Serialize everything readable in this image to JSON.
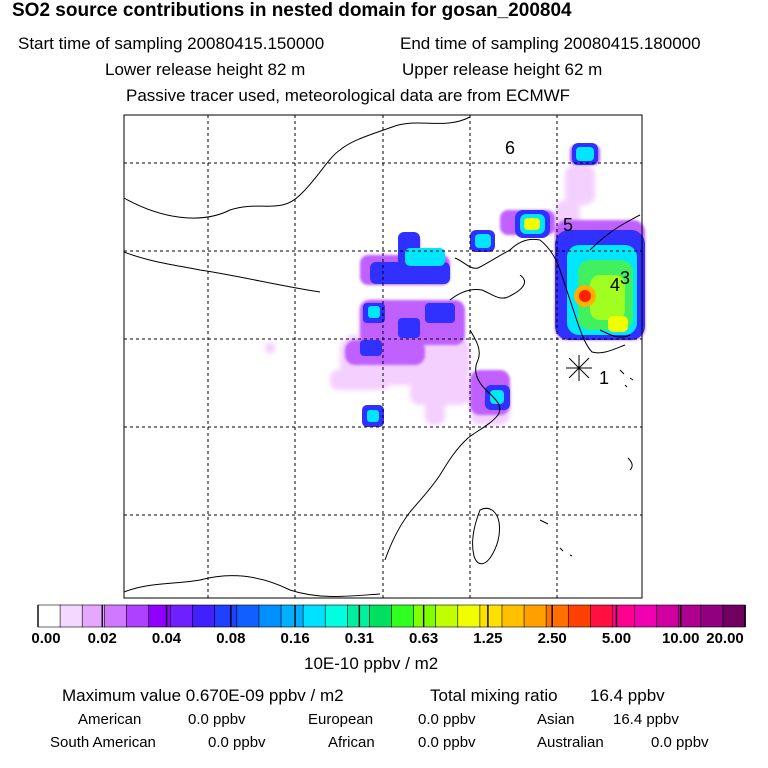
{
  "header": {
    "title": "SO2 source contributions in nested domain for gosan_200804",
    "start_label": "Start time of sampling 20080415.150000",
    "end_label": "End time of sampling 20080415.180000",
    "lower_label": "Lower release height   82 m",
    "upper_label": "Upper release height   62 m",
    "tracer_note": "Passive tracer used, meteorological data are from ECMWF"
  },
  "map": {
    "markers": [
      "1",
      "3",
      "4",
      "5",
      "6"
    ]
  },
  "colorbar": {
    "labels": [
      "0.00",
      "0.02",
      "0.04",
      "0.08",
      "0.16",
      "0.31",
      "0.63",
      "1.25",
      "2.50",
      "5.00",
      "10.00",
      "20.00"
    ],
    "colors": [
      "#ffffff",
      "#f4d8ff",
      "#e6a8ff",
      "#d078ff",
      "#b040ff",
      "#9000ff",
      "#7020ff",
      "#4020ff",
      "#2040ff",
      "#1060ff",
      "#0090ff",
      "#00b0ff",
      "#00e0ff",
      "#00ffe0",
      "#00f0a0",
      "#00e060",
      "#30ff20",
      "#80ff00",
      "#c0ff00",
      "#f0ff00",
      "#ffe000",
      "#ffc000",
      "#ffa000",
      "#ff7000",
      "#ff4000",
      "#ff1040",
      "#ff0090",
      "#f000b0",
      "#d000a0",
      "#b00090",
      "#900080",
      "#700060"
    ],
    "unit": "10E-10 ppbv / m2"
  },
  "stats": {
    "max_label": "Maximum value  0.670E-09 ppbv / m2",
    "total_label": "Total mixing ratio",
    "total_value": "16.4 ppbv",
    "regions": [
      {
        "name": "American",
        "value": "0.0 ppbv"
      },
      {
        "name": "European",
        "value": "0.0 ppbv"
      },
      {
        "name": "Asian",
        "value": "16.4 ppbv"
      },
      {
        "name": "South American",
        "value": "0.0 ppbv"
      },
      {
        "name": "African",
        "value": "0.0 ppbv"
      },
      {
        "name": "Australian",
        "value": "0.0 ppbv"
      }
    ]
  }
}
